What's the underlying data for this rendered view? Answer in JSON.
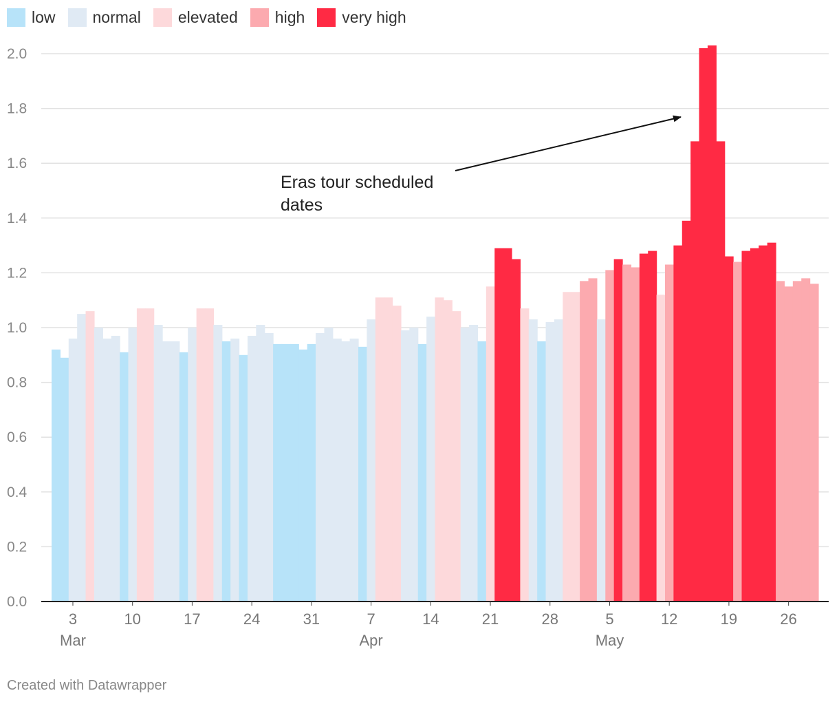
{
  "footer": "Created with Datawrapper",
  "legend": [
    {
      "label": "low",
      "color": "#b7e3f9"
    },
    {
      "label": "normal",
      "color": "#e0eaf4"
    },
    {
      "label": "elevated",
      "color": "#fdd9db"
    },
    {
      "label": "high",
      "color": "#fcaaaf"
    },
    {
      "label": "very high",
      "color": "#ff2a44"
    }
  ],
  "chart_data": {
    "type": "bar",
    "title": "",
    "xlabel": "",
    "ylabel": "",
    "ylim": [
      0,
      2.0
    ],
    "yticks": [
      "0.0",
      "0.2",
      "0.4",
      "0.6",
      "0.8",
      "1.0",
      "1.2",
      "1.4",
      "1.6",
      "1.8",
      "2.0"
    ],
    "grid": true,
    "legend_position": "top-left",
    "x_start": "2024-03-01",
    "x_ticks": [
      {
        "date": "2024-03-03",
        "label": "3",
        "month": "Mar"
      },
      {
        "date": "2024-03-10",
        "label": "10",
        "month": ""
      },
      {
        "date": "2024-03-17",
        "label": "17",
        "month": ""
      },
      {
        "date": "2024-03-24",
        "label": "24",
        "month": ""
      },
      {
        "date": "2024-03-31",
        "label": "31",
        "month": ""
      },
      {
        "date": "2024-04-07",
        "label": "7",
        "month": "Apr"
      },
      {
        "date": "2024-04-14",
        "label": "14",
        "month": ""
      },
      {
        "date": "2024-04-21",
        "label": "21",
        "month": ""
      },
      {
        "date": "2024-04-28",
        "label": "28",
        "month": ""
      },
      {
        "date": "2024-05-05",
        "label": "5",
        "month": "May"
      },
      {
        "date": "2024-05-12",
        "label": "12",
        "month": ""
      },
      {
        "date": "2024-05-19",
        "label": "19",
        "month": ""
      },
      {
        "date": "2024-05-26",
        "label": "26",
        "month": ""
      }
    ],
    "series": [
      {
        "values": [
          0.92,
          0.89,
          0.96,
          1.05,
          1.06,
          1.0,
          0.96,
          0.97,
          0.91,
          1.0,
          1.07,
          1.07,
          1.01,
          0.95,
          0.95,
          0.91,
          1.0,
          1.07,
          1.07,
          1.01,
          0.95,
          0.96,
          0.9,
          0.97,
          1.01,
          0.98,
          0.94,
          0.94,
          0.94,
          0.92,
          0.94,
          0.98,
          1.0,
          0.96,
          0.95,
          0.96,
          0.93,
          1.03,
          1.11,
          1.11,
          1.08,
          0.99,
          1.0,
          0.94,
          1.04,
          1.11,
          1.1,
          1.06,
          1.0,
          1.01,
          0.95,
          1.15,
          1.29,
          1.29,
          1.25,
          1.07,
          1.03,
          0.95,
          1.02,
          1.03,
          1.13,
          1.13,
          1.17,
          1.18,
          1.03,
          1.21,
          1.25,
          1.23,
          1.22,
          1.27,
          1.28,
          1.12,
          1.23,
          1.3,
          1.39,
          1.68,
          2.02,
          2.03,
          1.68,
          1.26,
          1.24,
          1.28,
          1.29,
          1.3,
          1.31,
          1.17,
          1.15,
          1.17,
          1.18,
          1.16
        ],
        "categories": [
          "low",
          "low",
          "normal",
          "normal",
          "elevated",
          "normal",
          "normal",
          "normal",
          "low",
          "normal",
          "elevated",
          "elevated",
          "normal",
          "normal",
          "normal",
          "low",
          "normal",
          "elevated",
          "elevated",
          "normal",
          "low",
          "normal",
          "low",
          "normal",
          "normal",
          "normal",
          "low",
          "low",
          "low",
          "low",
          "low",
          "normal",
          "normal",
          "normal",
          "normal",
          "normal",
          "low",
          "normal",
          "elevated",
          "elevated",
          "elevated",
          "normal",
          "normal",
          "low",
          "normal",
          "elevated",
          "elevated",
          "elevated",
          "normal",
          "normal",
          "low",
          "elevated",
          "very high",
          "very high",
          "very high",
          "elevated",
          "normal",
          "low",
          "normal",
          "normal",
          "elevated",
          "elevated",
          "high",
          "high",
          "normal",
          "high",
          "very high",
          "high",
          "high",
          "very high",
          "very high",
          "elevated",
          "high",
          "very high",
          "very high",
          "very high",
          "very high",
          "very high",
          "very high",
          "very high",
          "high",
          "very high",
          "very high",
          "very high",
          "very high",
          "high",
          "high",
          "high",
          "high",
          "high"
        ]
      }
    ],
    "annotations": [
      {
        "text_lines": [
          "Eras tour scheduled",
          "dates"
        ]
      }
    ]
  }
}
